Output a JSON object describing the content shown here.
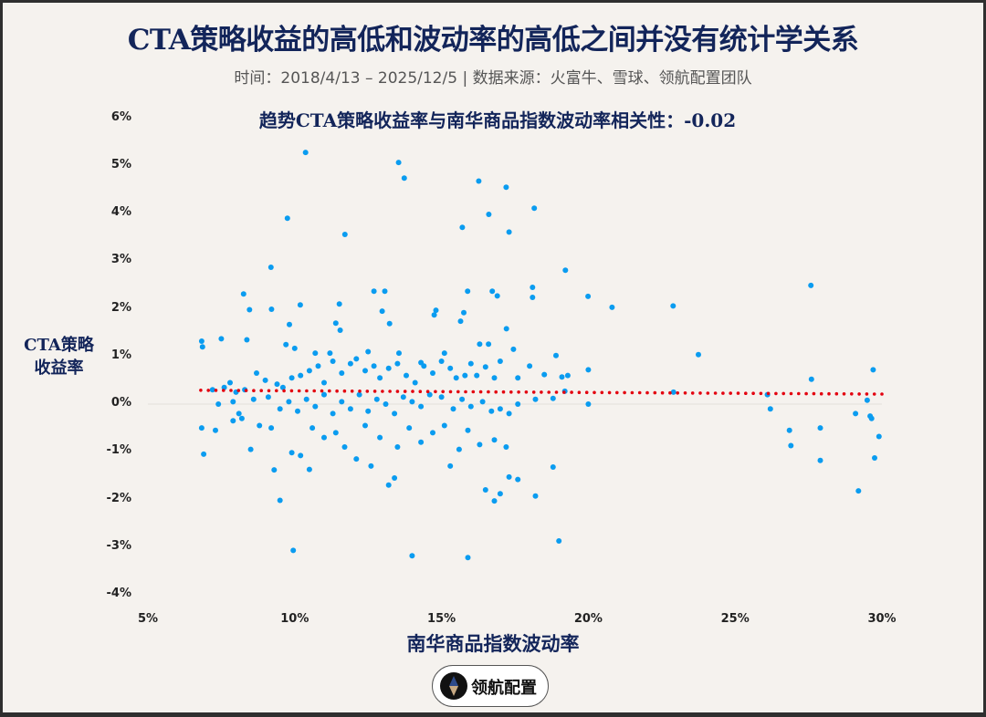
{
  "header": {
    "title": "CTA策略收益的高低和波动率的高低之间并没有统计学关系",
    "subtitle": "时间：2018/4/13 – 2025/12/5 | 数据来源：火富牛、雪球、领航配置团队",
    "correlation_label": "趋势CTA策略收益率与南华商品指数波动率相关性：-0.02"
  },
  "axes": {
    "ylabel_line1": "CTA策略",
    "ylabel_line2": "收益率",
    "xlabel": "南华商品指数波动率",
    "yticks": [
      "6%",
      "5%",
      "4%",
      "3%",
      "2%",
      "1%",
      "0%",
      "-1%",
      "-2%",
      "-3%",
      "-4%"
    ],
    "xticks": [
      "5%",
      "10%",
      "15%",
      "20%",
      "25%",
      "30%"
    ]
  },
  "logo": {
    "text": "领航配置"
  },
  "colors": {
    "point": "#0a9cf0",
    "trend": "#e3000f",
    "title": "#13255a",
    "background": "#f5f2ee"
  },
  "chart_data": {
    "type": "scatter",
    "title": "CTA策略收益的高低和波动率的高低之间并没有统计学关系",
    "subtitle": "趋势CTA策略收益率与南华商品指数波动率相关性：-0.02",
    "xlabel": "南华商品指数波动率",
    "ylabel": "CTA策略收益率",
    "xlim": [
      5,
      30
    ],
    "ylim": [
      -4,
      6
    ],
    "x_unit": "%",
    "y_unit": "%",
    "correlation": -0.02,
    "trendline": {
      "x": [
        6.8,
        30
      ],
      "y": [
        0.29,
        0.21
      ],
      "style": "dotted",
      "color": "#e3000f"
    },
    "grid": false,
    "legend": null,
    "points": [
      [
        10.37,
        5.28
      ],
      [
        13.54,
        5.07
      ],
      [
        13.73,
        4.74
      ],
      [
        16.27,
        4.68
      ],
      [
        17.2,
        4.55
      ],
      [
        9.75,
        3.9
      ],
      [
        16.61,
        3.98
      ],
      [
        18.16,
        4.11
      ],
      [
        11.71,
        3.56
      ],
      [
        15.71,
        3.71
      ],
      [
        17.3,
        3.61
      ],
      [
        9.19,
        2.87
      ],
      [
        19.22,
        2.81
      ],
      [
        8.26,
        2.31
      ],
      [
        12.7,
        2.37
      ],
      [
        13.07,
        2.37
      ],
      [
        15.89,
        2.37
      ],
      [
        16.73,
        2.37
      ],
      [
        18.1,
        2.45
      ],
      [
        18.1,
        2.24
      ],
      [
        19.99,
        2.26
      ],
      [
        27.58,
        2.49
      ],
      [
        22.89,
        2.06
      ],
      [
        20.81,
        2.03
      ],
      [
        10.19,
        2.08
      ],
      [
        11.52,
        2.1
      ],
      [
        8.46,
        1.98
      ],
      [
        9.21,
        1.99
      ],
      [
        12.98,
        1.95
      ],
      [
        14.81,
        1.97
      ],
      [
        15.76,
        1.92
      ],
      [
        16.9,
        2.27
      ],
      [
        6.83,
        1.32
      ],
      [
        6.86,
        1.2
      ],
      [
        7.5,
        1.37
      ],
      [
        8.37,
        1.35
      ],
      [
        9.82,
        1.67
      ],
      [
        11.4,
        1.7
      ],
      [
        13.23,
        1.69
      ],
      [
        14.75,
        1.87
      ],
      [
        15.65,
        1.74
      ],
      [
        17.21,
        1.58
      ],
      [
        11.55,
        1.55
      ],
      [
        9.7,
        1.25
      ],
      [
        10.0,
        1.17
      ],
      [
        10.7,
        1.07
      ],
      [
        11.2,
        1.07
      ],
      [
        12.5,
        1.1
      ],
      [
        13.55,
        1.07
      ],
      [
        14.3,
        0.87
      ],
      [
        15.1,
        1.07
      ],
      [
        16.3,
        1.26
      ],
      [
        16.6,
        1.26
      ],
      [
        17.45,
        1.15
      ],
      [
        18.9,
        1.02
      ],
      [
        23.75,
        1.04
      ],
      [
        7.2,
        0.3
      ],
      [
        7.6,
        0.35
      ],
      [
        7.8,
        0.45
      ],
      [
        8.0,
        0.25
      ],
      [
        8.3,
        0.3
      ],
      [
        8.7,
        0.65
      ],
      [
        9.0,
        0.5
      ],
      [
        9.4,
        0.42
      ],
      [
        9.6,
        0.35
      ],
      [
        9.9,
        0.55
      ],
      [
        10.2,
        0.6
      ],
      [
        10.5,
        0.7
      ],
      [
        10.8,
        0.8
      ],
      [
        11.0,
        0.45
      ],
      [
        11.3,
        0.9
      ],
      [
        11.6,
        0.65
      ],
      [
        11.9,
        0.85
      ],
      [
        12.1,
        0.95
      ],
      [
        12.4,
        0.7
      ],
      [
        12.7,
        0.8
      ],
      [
        12.9,
        0.55
      ],
      [
        13.2,
        0.75
      ],
      [
        13.5,
        0.85
      ],
      [
        13.8,
        0.6
      ],
      [
        14.1,
        0.45
      ],
      [
        14.4,
        0.8
      ],
      [
        14.7,
        0.65
      ],
      [
        15.0,
        0.9
      ],
      [
        15.3,
        0.75
      ],
      [
        15.5,
        0.55
      ],
      [
        15.8,
        0.6
      ],
      [
        16.0,
        0.85
      ],
      [
        16.2,
        0.6
      ],
      [
        16.5,
        0.78
      ],
      [
        16.8,
        0.55
      ],
      [
        17.0,
        0.9
      ],
      [
        17.6,
        0.55
      ],
      [
        18.0,
        0.8
      ],
      [
        18.5,
        0.62
      ],
      [
        19.1,
        0.57
      ],
      [
        19.3,
        0.6
      ],
      [
        20.0,
        0.72
      ],
      [
        27.6,
        0.52
      ],
      [
        29.7,
        0.72
      ],
      [
        7.4,
        0.0
      ],
      [
        7.9,
        0.05
      ],
      [
        8.1,
        -0.2
      ],
      [
        8.6,
        0.1
      ],
      [
        9.1,
        0.15
      ],
      [
        9.5,
        -0.1
      ],
      [
        9.8,
        0.05
      ],
      [
        10.1,
        -0.15
      ],
      [
        10.4,
        0.1
      ],
      [
        10.7,
        -0.05
      ],
      [
        11.0,
        0.2
      ],
      [
        11.3,
        -0.2
      ],
      [
        11.6,
        0.05
      ],
      [
        11.9,
        -0.1
      ],
      [
        12.2,
        0.2
      ],
      [
        12.5,
        -0.15
      ],
      [
        12.8,
        0.1
      ],
      [
        13.1,
        0.0
      ],
      [
        13.4,
        -0.2
      ],
      [
        13.7,
        0.15
      ],
      [
        14.0,
        0.05
      ],
      [
        14.3,
        -0.05
      ],
      [
        14.6,
        0.2
      ],
      [
        15.0,
        0.15
      ],
      [
        15.4,
        -0.1
      ],
      [
        15.7,
        0.1
      ],
      [
        16.0,
        -0.05
      ],
      [
        16.4,
        0.05
      ],
      [
        16.7,
        -0.15
      ],
      [
        17.0,
        -0.1
      ],
      [
        17.3,
        -0.2
      ],
      [
        17.6,
        0.0
      ],
      [
        18.2,
        0.1
      ],
      [
        18.8,
        0.12
      ],
      [
        19.2,
        0.27
      ],
      [
        20.0,
        0.0
      ],
      [
        22.9,
        0.25
      ],
      [
        26.1,
        0.2
      ],
      [
        29.5,
        0.08
      ],
      [
        6.83,
        -0.5
      ],
      [
        6.9,
        -1.05
      ],
      [
        7.3,
        -0.55
      ],
      [
        7.9,
        -0.35
      ],
      [
        8.2,
        -0.3
      ],
      [
        8.5,
        -0.95
      ],
      [
        8.8,
        -0.45
      ],
      [
        9.2,
        -0.5
      ],
      [
        9.3,
        -1.38
      ],
      [
        9.5,
        -2.02
      ],
      [
        9.9,
        -1.02
      ],
      [
        10.2,
        -1.08
      ],
      [
        10.5,
        -1.37
      ],
      [
        10.6,
        -0.5
      ],
      [
        11.0,
        -0.7
      ],
      [
        11.4,
        -0.6
      ],
      [
        11.7,
        -0.9
      ],
      [
        12.1,
        -1.15
      ],
      [
        12.4,
        -0.45
      ],
      [
        12.6,
        -1.3
      ],
      [
        12.9,
        -0.7
      ],
      [
        13.2,
        -1.7
      ],
      [
        13.4,
        -1.55
      ],
      [
        13.5,
        -0.9
      ],
      [
        13.9,
        -0.5
      ],
      [
        14.3,
        -0.8
      ],
      [
        14.7,
        -0.6
      ],
      [
        15.1,
        -0.45
      ],
      [
        15.3,
        -1.3
      ],
      [
        15.6,
        -0.95
      ],
      [
        15.9,
        -0.55
      ],
      [
        16.3,
        -0.85
      ],
      [
        16.5,
        -1.8
      ],
      [
        16.8,
        -0.75
      ],
      [
        17.0,
        -1.88
      ],
      [
        17.2,
        -0.9
      ],
      [
        17.3,
        -1.53
      ],
      [
        17.6,
        -1.58
      ],
      [
        18.2,
        -1.93
      ],
      [
        18.8,
        -1.32
      ],
      [
        19.0,
        -2.87
      ],
      [
        9.95,
        -3.07
      ],
      [
        14.0,
        -3.18
      ],
      [
        15.9,
        -3.22
      ],
      [
        16.8,
        -2.03
      ],
      [
        26.2,
        -0.1
      ],
      [
        26.85,
        -0.55
      ],
      [
        26.9,
        -0.87
      ],
      [
        27.9,
        -0.5
      ],
      [
        27.9,
        -1.18
      ],
      [
        29.2,
        -1.82
      ],
      [
        29.6,
        -0.25
      ],
      [
        29.65,
        -0.3
      ],
      [
        29.75,
        -1.13
      ],
      [
        29.9,
        -0.68
      ],
      [
        29.1,
        -0.2
      ]
    ]
  }
}
